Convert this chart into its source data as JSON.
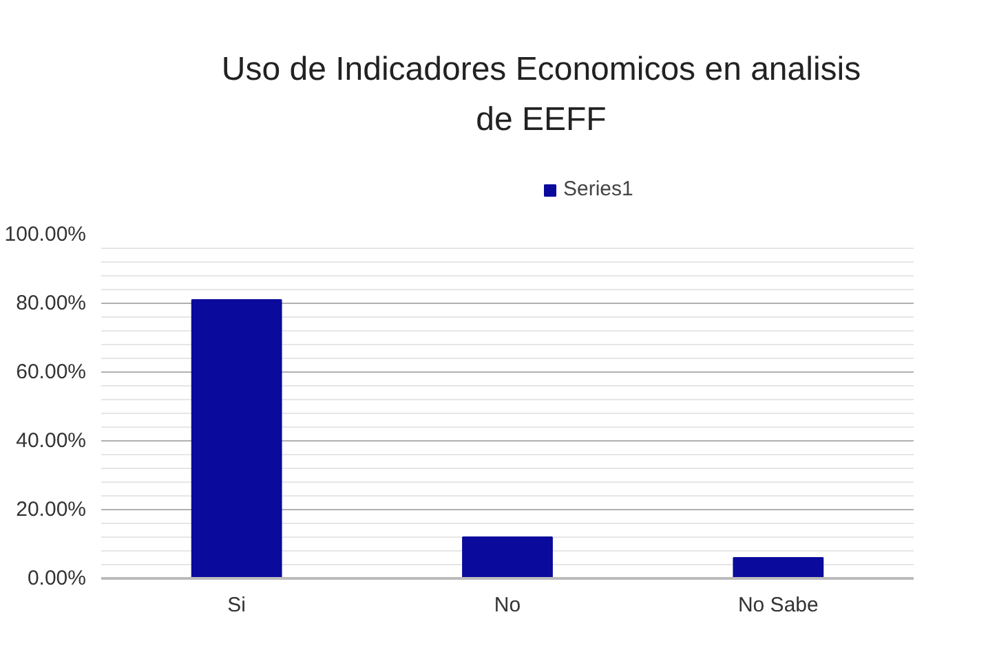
{
  "chart_data": {
    "type": "bar",
    "title": "Uso de Indicadores Economicos en analisis de EEFF",
    "categories": [
      "Si",
      "No",
      "No Sabe"
    ],
    "series": [
      {
        "name": "Series1",
        "color": "#0a0a9c",
        "values": [
          81,
          12,
          6
        ]
      }
    ],
    "ylim": [
      0,
      100
    ],
    "yticks": [
      {
        "value": 0,
        "label": "0.00%"
      },
      {
        "value": 20,
        "label": "20.00%"
      },
      {
        "value": 40,
        "label": "40.00%"
      },
      {
        "value": 60,
        "label": "60.00%"
      },
      {
        "value": 80,
        "label": "80.00%"
      },
      {
        "value": 100,
        "label": "100.00%"
      }
    ],
    "grid": "y",
    "legend": "top"
  }
}
